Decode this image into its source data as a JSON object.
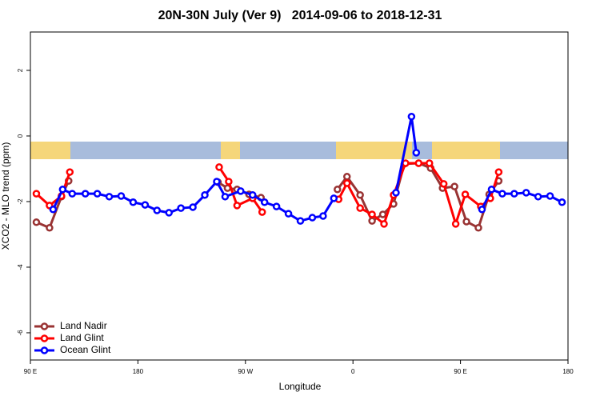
{
  "chart_data": {
    "type": "line",
    "title": "20N-30N July (Ver 9)   2014-09-06 to 2018-12-31",
    "xlabel": "Longitude",
    "ylabel": "XCO2 - MLO trend (ppm)",
    "xlim": [
      90,
      540
    ],
    "xticks": [
      {
        "value": 90,
        "label": "90 E"
      },
      180,
      {
        "value": 270,
        "label": "90 W"
      },
      {
        "value": 360,
        "label": "0"
      },
      {
        "value": 450,
        "label": "90 E"
      },
      {
        "value": 540,
        "label": "180"
      }
    ],
    "ylim": [
      -6.83,
      3.17
    ],
    "yticks": [
      -6,
      -4,
      -2,
      0,
      2
    ],
    "legend": "bottom-left",
    "series": [
      {
        "name": "Land Nadir",
        "color": "#993333",
        "x": [
          95,
          106,
          116,
          122,
          185,
          247,
          255,
          263,
          273,
          283,
          315,
          347,
          355,
          366,
          376,
          385,
          394,
          403,
          415,
          425,
          435,
          445,
          455,
          465,
          474,
          482
        ],
        "values": [
          -2.63,
          -2.8,
          -1.85,
          -1.37,
          null,
          -1.41,
          -1.59,
          -1.63,
          -1.78,
          -1.88,
          null,
          -1.63,
          -1.24,
          -1.8,
          -2.59,
          -2.39,
          -2.07,
          -0.85,
          -0.83,
          -0.98,
          -1.59,
          -1.54,
          -2.61,
          -2.8,
          -1.78,
          -1.37
        ]
      },
      {
        "name": "Land Glint",
        "color": "#ff0000",
        "x": [
          95,
          106,
          116,
          123,
          185,
          248,
          256,
          263,
          276,
          284,
          315,
          348,
          355,
          366,
          376,
          386,
          394,
          404,
          415,
          424,
          436,
          446,
          454,
          467,
          475,
          482
        ],
        "values": [
          -1.76,
          -2.12,
          -1.83,
          -1.1,
          null,
          -0.95,
          -1.39,
          -2.12,
          -1.9,
          -2.32,
          null,
          -1.93,
          -1.44,
          -2.2,
          -2.39,
          -2.68,
          -1.8,
          -0.83,
          -0.83,
          -0.83,
          -1.46,
          -2.68,
          -1.78,
          -2.15,
          -1.9,
          -1.1
        ]
      },
      {
        "name": "Ocean Glint",
        "color": "#0000ff",
        "x": [
          109,
          117,
          125,
          136,
          146,
          156,
          166,
          176,
          186,
          196,
          206,
          216,
          226,
          236,
          246,
          253,
          266,
          276,
          286,
          296,
          306,
          316,
          326,
          335,
          344,
          370,
          396,
          409,
          413,
          440,
          468,
          476,
          485,
          495,
          505,
          515,
          525,
          535
        ],
        "values": [
          -2.24,
          -1.63,
          -1.76,
          -1.76,
          -1.76,
          -1.85,
          -1.83,
          -2.02,
          -2.1,
          -2.27,
          -2.34,
          -2.2,
          -2.17,
          -1.8,
          -1.39,
          -1.85,
          -1.68,
          -1.8,
          -2.02,
          -2.15,
          -2.37,
          -2.59,
          -2.49,
          -2.44,
          -1.9,
          null,
          -1.73,
          0.59,
          -0.51,
          null,
          -2.24,
          -1.63,
          -1.76,
          -1.76,
          -1.73,
          -1.85,
          -1.83,
          -2.02
        ]
      }
    ]
  }
}
